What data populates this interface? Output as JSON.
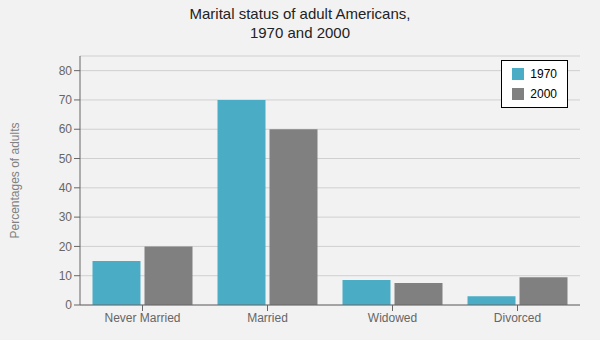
{
  "chart_data": {
    "type": "bar",
    "title": "Marital status of adult Americans,\n1970 and 2000",
    "categories": [
      "Never Married",
      "Married",
      "Widowed",
      "Divorced"
    ],
    "series": [
      {
        "name": "1970",
        "color": "#4bacc6",
        "values": [
          15,
          70,
          8.5,
          3
        ]
      },
      {
        "name": "2000",
        "color": "#808080",
        "values": [
          20,
          60,
          7.5,
          9.5
        ]
      }
    ],
    "ylabel": "Percentages of adults",
    "ylim": [
      0,
      85
    ],
    "yticks": [
      0,
      10,
      20,
      30,
      40,
      50,
      60,
      70,
      80
    ],
    "grid": true,
    "legend": "upper right"
  }
}
